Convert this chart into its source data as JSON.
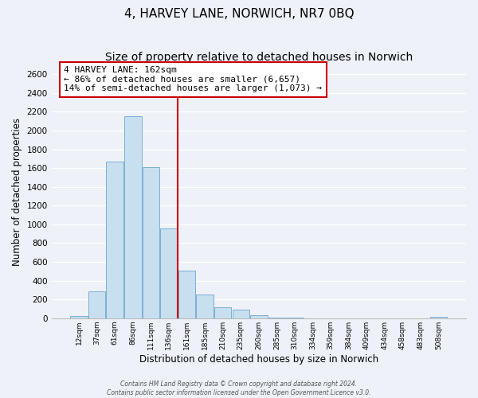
{
  "title": "4, HARVEY LANE, NORWICH, NR7 0BQ",
  "subtitle": "Size of property relative to detached houses in Norwich",
  "xlabel": "Distribution of detached houses by size in Norwich",
  "ylabel": "Number of detached properties",
  "bar_color": "#c8dff0",
  "bar_edge_color": "#7aafd4",
  "categories": [
    "12sqm",
    "37sqm",
    "61sqm",
    "86sqm",
    "111sqm",
    "136sqm",
    "161sqm",
    "185sqm",
    "210sqm",
    "235sqm",
    "260sqm",
    "285sqm",
    "310sqm",
    "334sqm",
    "359sqm",
    "384sqm",
    "409sqm",
    "434sqm",
    "458sqm",
    "483sqm",
    "508sqm"
  ],
  "values": [
    20,
    290,
    1670,
    2150,
    1610,
    960,
    510,
    250,
    120,
    95,
    30,
    5,
    5,
    2,
    2,
    2,
    2,
    2,
    2,
    2,
    15
  ],
  "ylim": [
    0,
    2700
  ],
  "yticks": [
    0,
    200,
    400,
    600,
    800,
    1000,
    1200,
    1400,
    1600,
    1800,
    2000,
    2200,
    2400,
    2600
  ],
  "marker_index": 6,
  "marker_label": "4 HARVEY LANE: 162sqm",
  "annotation_line1": "← 86% of detached houses are smaller (6,657)",
  "annotation_line2": "14% of semi-detached houses are larger (1,073) →",
  "marker_color": "#cc0000",
  "footer1": "Contains HM Land Registry data © Crown copyright and database right 2024.",
  "footer2": "Contains public sector information licensed under the Open Government Licence v3.0.",
  "background_color": "#eef2f8",
  "grid_color": "#ffffff",
  "title_fontsize": 11,
  "subtitle_fontsize": 10
}
